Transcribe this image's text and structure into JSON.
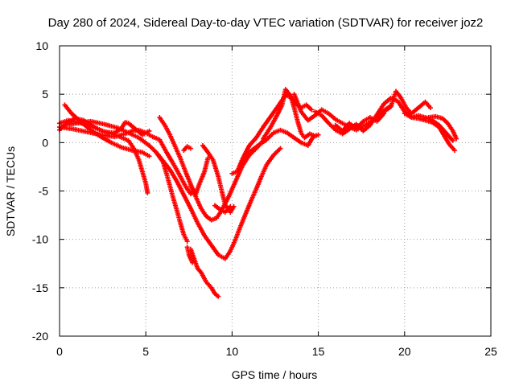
{
  "chart_data": {
    "type": "scatter",
    "title": "Day 280 of 2024, Sidereal Day-to-day VTEC variation (SDTVAR) for receiver joz2",
    "xlabel": "GPS time / hours",
    "ylabel": "SDTVAR / TECUs",
    "xlim": [
      0,
      25
    ],
    "ylim": [
      -20,
      10
    ],
    "x_ticks": [
      "0",
      "5",
      "10",
      "15",
      "20",
      "25"
    ],
    "y_ticks": [
      "10",
      "5",
      "0",
      "-5",
      "-10",
      "-15",
      "-20"
    ],
    "grid": true,
    "marker": "plus",
    "colors": {
      "series": "#ff0000",
      "grid": "#a0a0a0",
      "axis": "#000000"
    },
    "series": [
      {
        "points": [
          [
            0.0,
            2.0
          ],
          [
            0.5,
            2.3
          ],
          [
            1.0,
            2.1
          ],
          [
            1.5,
            1.9
          ],
          [
            2.0,
            1.6
          ],
          [
            2.5,
            1.2
          ],
          [
            3.0,
            0.9
          ],
          [
            3.5,
            0.6
          ],
          [
            4.0,
            0.2
          ],
          [
            4.3,
            -0.6
          ],
          [
            4.6,
            -1.8
          ],
          [
            4.8,
            -3.0
          ],
          [
            5.0,
            -4.2
          ],
          [
            5.1,
            -5.2
          ]
        ]
      },
      {
        "points": [
          [
            0.3,
            3.9
          ],
          [
            0.7,
            3.0
          ],
          [
            1.2,
            2.2
          ],
          [
            1.8,
            1.3
          ],
          [
            2.4,
            0.6
          ],
          [
            3.0,
            0.0
          ],
          [
            3.6,
            -0.5
          ],
          [
            4.2,
            -0.8
          ],
          [
            4.8,
            -1.0
          ],
          [
            5.2,
            -1.4
          ]
        ]
      },
      {
        "points": [
          [
            0.0,
            1.6
          ],
          [
            0.8,
            1.4
          ],
          [
            1.6,
            1.1
          ],
          [
            2.4,
            0.8
          ],
          [
            3.2,
            0.6
          ],
          [
            3.8,
            0.9
          ],
          [
            4.2,
            1.2
          ],
          [
            4.6,
            1.3
          ],
          [
            5.0,
            1.0
          ],
          [
            5.4,
            0.6
          ],
          [
            5.8,
            0.3
          ],
          [
            6.2,
            -1.0
          ],
          [
            6.6,
            -2.2
          ],
          [
            7.0,
            -3.5
          ],
          [
            7.3,
            -4.5
          ],
          [
            7.6,
            -5.3
          ],
          [
            7.8,
            -5.0
          ]
        ]
      },
      {
        "points": [
          [
            0.0,
            1.3
          ],
          [
            0.4,
            2.0
          ],
          [
            0.9,
            2.5
          ],
          [
            1.4,
            2.3
          ],
          [
            2.0,
            1.6
          ],
          [
            2.6,
            1.1
          ],
          [
            3.2,
            1.0
          ],
          [
            3.6,
            1.5
          ],
          [
            3.8,
            2.1
          ],
          [
            4.0,
            2.0
          ],
          [
            4.4,
            1.4
          ],
          [
            4.8,
            0.8
          ],
          [
            5.2,
            1.2
          ]
        ]
      },
      {
        "points": [
          [
            0.2,
            1.8
          ],
          [
            1.0,
            2.0
          ],
          [
            1.8,
            2.2
          ],
          [
            2.6,
            1.9
          ],
          [
            3.4,
            1.5
          ],
          [
            4.0,
            1.0
          ],
          [
            4.6,
            0.5
          ],
          [
            5.2,
            -0.3
          ],
          [
            5.6,
            -1.0
          ],
          [
            6.0,
            -2.0
          ],
          [
            6.2,
            -3.2
          ],
          [
            6.4,
            -4.5
          ],
          [
            6.6,
            -5.8
          ],
          [
            6.8,
            -7.0
          ],
          [
            7.0,
            -8.3
          ],
          [
            7.2,
            -9.5
          ],
          [
            7.4,
            -10.2
          ]
        ]
      },
      {
        "points": [
          [
            5.8,
            2.6
          ],
          [
            6.1,
            1.8
          ],
          [
            6.4,
            0.8
          ],
          [
            6.7,
            -0.4
          ],
          [
            7.0,
            -1.6
          ],
          [
            7.3,
            -3.0
          ],
          [
            7.6,
            -4.3
          ],
          [
            7.9,
            -5.6
          ],
          [
            8.2,
            -6.8
          ],
          [
            8.5,
            -7.6
          ],
          [
            8.8,
            -8.0
          ],
          [
            9.1,
            -7.8
          ],
          [
            9.4,
            -7.0
          ],
          [
            9.8,
            -5.6
          ],
          [
            10.2,
            -4.0
          ],
          [
            10.6,
            -2.4
          ],
          [
            11.0,
            -1.3
          ],
          [
            11.4,
            -0.6
          ],
          [
            11.8,
            0.2
          ]
        ]
      },
      {
        "points": [
          [
            7.2,
            -0.8
          ],
          [
            7.4,
            -0.4
          ],
          [
            7.6,
            -0.6
          ]
        ]
      },
      {
        "points": [
          [
            7.6,
            -4.5
          ],
          [
            7.9,
            -5.3
          ],
          [
            8.1,
            -4.3
          ],
          [
            8.4,
            -3.0
          ],
          [
            8.6,
            -1.6
          ]
        ]
      },
      {
        "points": [
          [
            5.6,
            -1.0
          ],
          [
            6.0,
            -1.9
          ],
          [
            6.4,
            -2.8
          ],
          [
            6.8,
            -4.0
          ],
          [
            7.2,
            -5.4
          ],
          [
            7.6,
            -6.8
          ],
          [
            8.0,
            -8.3
          ],
          [
            8.4,
            -9.6
          ],
          [
            8.8,
            -10.6
          ],
          [
            9.2,
            -11.6
          ],
          [
            9.6,
            -12.0
          ],
          [
            9.9,
            -11.2
          ],
          [
            10.2,
            -10.0
          ],
          [
            10.5,
            -8.6
          ],
          [
            10.8,
            -7.3
          ],
          [
            11.1,
            -6.0
          ],
          [
            11.4,
            -4.8
          ],
          [
            11.7,
            -3.5
          ],
          [
            12.0,
            -2.3
          ],
          [
            12.4,
            -1.3
          ],
          [
            12.8,
            -0.6
          ]
        ]
      },
      {
        "points": [
          [
            8.3,
            -0.3
          ],
          [
            8.6,
            -1.0
          ],
          [
            8.9,
            -1.8
          ],
          [
            9.2,
            -3.5
          ],
          [
            9.4,
            -5.0
          ],
          [
            9.6,
            -6.4
          ],
          [
            9.9,
            -7.2
          ],
          [
            10.1,
            -6.6
          ]
        ]
      },
      {
        "points": [
          [
            7.6,
            -11.0
          ],
          [
            7.8,
            -12.0
          ],
          [
            8.0,
            -13.0
          ],
          [
            8.2,
            -13.4
          ],
          [
            8.5,
            -14.4
          ],
          [
            8.8,
            -15.0
          ],
          [
            9.0,
            -15.6
          ],
          [
            9.2,
            -15.9
          ]
        ]
      },
      {
        "points": [
          [
            7.4,
            -10.8
          ],
          [
            7.5,
            -11.6
          ],
          [
            7.7,
            -12.4
          ]
        ]
      },
      {
        "points": [
          [
            9.0,
            -6.5
          ],
          [
            9.3,
            -6.9
          ],
          [
            9.6,
            -7.2
          ],
          [
            9.9,
            -6.6
          ]
        ]
      },
      {
        "points": [
          [
            10.0,
            -3.2
          ],
          [
            10.3,
            -3.0
          ],
          [
            10.6,
            -1.7
          ],
          [
            11.0,
            -0.3
          ],
          [
            11.4,
            0.5
          ],
          [
            11.8,
            1.6
          ],
          [
            12.2,
            2.6
          ],
          [
            12.6,
            3.6
          ],
          [
            12.9,
            4.4
          ],
          [
            13.1,
            4.9
          ],
          [
            13.4,
            4.7
          ],
          [
            13.7,
            4.0
          ],
          [
            14.0,
            3.6
          ],
          [
            14.3,
            3.9
          ],
          [
            14.6,
            3.4
          ]
        ]
      },
      {
        "points": [
          [
            11.8,
            0.4
          ],
          [
            12.2,
            1.5
          ],
          [
            12.6,
            2.8
          ],
          [
            12.9,
            3.9
          ],
          [
            13.1,
            5.5
          ],
          [
            13.4,
            4.8
          ],
          [
            13.6,
            3.6
          ],
          [
            13.8,
            2.2
          ],
          [
            14.0,
            1.0
          ],
          [
            14.2,
            0.5
          ],
          [
            14.5,
            0.9
          ],
          [
            14.8,
            0.7
          ]
        ]
      },
      {
        "points": [
          [
            10.5,
            -2.2
          ],
          [
            11.0,
            -1.0
          ],
          [
            11.5,
            -0.3
          ],
          [
            12.0,
            0.3
          ],
          [
            12.4,
            1.0
          ],
          [
            12.8,
            1.3
          ],
          [
            13.2,
            1.0
          ],
          [
            13.6,
            0.5
          ],
          [
            14.0,
            0.0
          ],
          [
            14.4,
            -0.3
          ],
          [
            14.7,
            0.6
          ],
          [
            15.0,
            0.8
          ]
        ]
      },
      {
        "points": [
          [
            13.6,
            5.0
          ],
          [
            14.0,
            3.2
          ],
          [
            14.4,
            2.3
          ],
          [
            14.8,
            2.8
          ],
          [
            15.2,
            3.4
          ],
          [
            15.6,
            3.0
          ],
          [
            16.0,
            2.4
          ],
          [
            16.4,
            2.0
          ],
          [
            16.8,
            1.6
          ],
          [
            17.2,
            1.3
          ],
          [
            17.6,
            1.7
          ],
          [
            18.0,
            2.1
          ],
          [
            18.4,
            2.7
          ],
          [
            18.8,
            3.3
          ],
          [
            19.2,
            3.8
          ]
        ]
      },
      {
        "points": [
          [
            14.8,
            3.2
          ],
          [
            15.2,
            2.8
          ],
          [
            15.6,
            2.0
          ],
          [
            16.0,
            1.3
          ],
          [
            16.4,
            0.9
          ],
          [
            16.8,
            1.4
          ],
          [
            17.2,
            1.9
          ],
          [
            17.6,
            1.2
          ],
          [
            18.0,
            1.8
          ],
          [
            18.4,
            2.9
          ],
          [
            18.8,
            4.0
          ],
          [
            19.2,
            4.6
          ],
          [
            19.6,
            4.3
          ],
          [
            20.0,
            3.2
          ],
          [
            20.4,
            2.6
          ],
          [
            20.8,
            2.8
          ],
          [
            21.2,
            2.6
          ],
          [
            21.6,
            2.3
          ],
          [
            22.0,
            1.8
          ],
          [
            22.4,
            1.0
          ],
          [
            22.8,
            0.2
          ]
        ]
      },
      {
        "points": [
          [
            18.8,
            3.2
          ],
          [
            19.2,
            3.7
          ],
          [
            19.5,
            5.3
          ],
          [
            19.8,
            4.6
          ],
          [
            20.1,
            3.6
          ],
          [
            20.4,
            3.0
          ],
          [
            20.8,
            3.6
          ],
          [
            21.2,
            4.2
          ],
          [
            21.5,
            3.6
          ]
        ]
      },
      {
        "points": [
          [
            20.0,
            3.0
          ],
          [
            20.4,
            2.6
          ],
          [
            20.8,
            2.5
          ],
          [
            21.2,
            2.3
          ],
          [
            21.6,
            2.1
          ],
          [
            22.0,
            1.6
          ],
          [
            22.3,
            0.7
          ],
          [
            22.6,
            -0.2
          ],
          [
            22.9,
            -0.8
          ]
        ]
      },
      {
        "points": [
          [
            21.0,
            2.4
          ],
          [
            21.4,
            2.6
          ],
          [
            21.8,
            2.7
          ],
          [
            22.2,
            2.5
          ],
          [
            22.5,
            2.0
          ],
          [
            22.8,
            1.2
          ],
          [
            23.0,
            0.4
          ]
        ]
      },
      {
        "points": [
          [
            16.0,
            1.8
          ],
          [
            16.4,
            1.2
          ],
          [
            16.8,
            2.0
          ],
          [
            17.2,
            1.4
          ],
          [
            17.6,
            2.2
          ],
          [
            18.0,
            2.6
          ],
          [
            18.4,
            2.2
          ],
          [
            18.8,
            3.0
          ]
        ]
      }
    ]
  }
}
